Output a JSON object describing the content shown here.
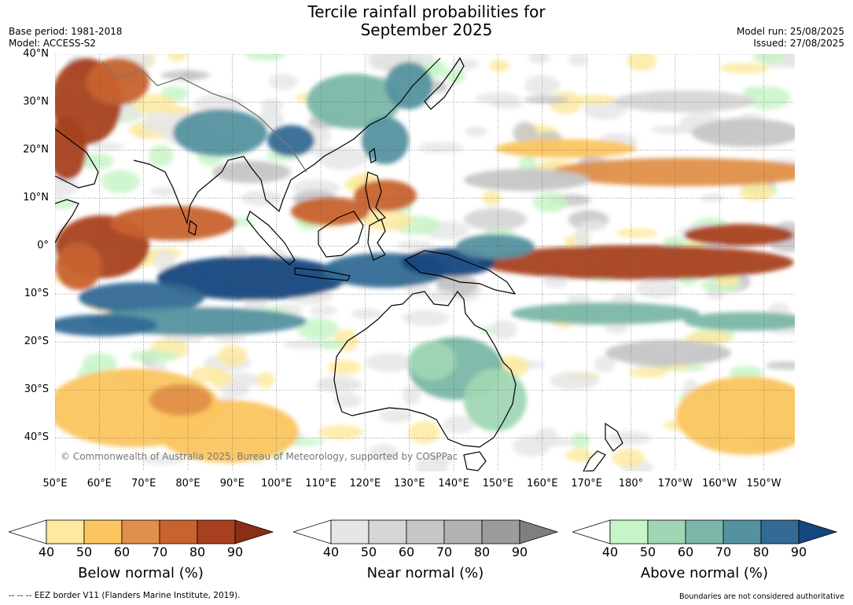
{
  "header": {
    "title_line1": "Tercile rainfall probabilities for",
    "title_line2": "September 2025",
    "base_period": "Base period: 1981-2018",
    "model": "Model: ACCESS-S2",
    "model_run": "Model run: 25/08/2025",
    "issued": "Issued: 27/08/2025"
  },
  "map": {
    "lat_labels": [
      "40°N",
      "30°N",
      "20°N",
      "10°N",
      "0°",
      "10°S",
      "20°S",
      "30°S",
      "40°S"
    ],
    "lon_labels": [
      "50°E",
      "60°E",
      "70°E",
      "80°E",
      "90°E",
      "100°E",
      "110°E",
      "120°E",
      "130°E",
      "140°E",
      "150°E",
      "160°E",
      "170°E",
      "180°",
      "170°W",
      "160°W",
      "150°W"
    ],
    "copyright": "© Commonwealth of Australia 2025, Bureau of Meteorology, supported by COSPPac",
    "colors": {
      "below": [
        "#fdeaa0",
        "#fbc560",
        "#e0904a",
        "#c8622e",
        "#a8401f",
        "#8a2e15"
      ],
      "near": [
        "#e6e6e6",
        "#d6d6d6",
        "#c6c6c6",
        "#b2b2b2",
        "#9c9c9c",
        "#7f7f7f"
      ],
      "above": [
        "#c8f5c8",
        "#a0d6b4",
        "#7ab7a8",
        "#5592a0",
        "#336b96",
        "#14477e"
      ]
    }
  },
  "legends": [
    {
      "label": "Below normal (%)",
      "ticks": [
        "40",
        "50",
        "60",
        "70",
        "80",
        "90"
      ],
      "palette": "below"
    },
    {
      "label": "Near normal (%)",
      "ticks": [
        "40",
        "50",
        "60",
        "70",
        "80",
        "90"
      ],
      "palette": "near"
    },
    {
      "label": "Above normal (%)",
      "ticks": [
        "40",
        "50",
        "60",
        "70",
        "80",
        "90"
      ],
      "palette": "above"
    }
  ],
  "footer": {
    "eez": "--  --  -- EEZ border V11 (Flanders Marine Institute, 2019).",
    "disclaimer": "Boundaries are not considered authoritative"
  }
}
